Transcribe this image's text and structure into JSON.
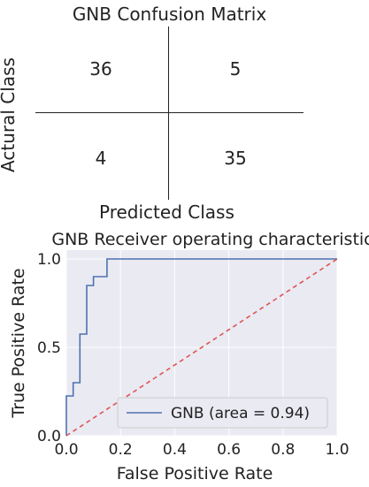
{
  "confusion_matrix": {
    "title": "GNB Confusion Matrix",
    "ylabel": "Actural Class",
    "xlabel": "Predicted Class",
    "cells": {
      "tl": "36",
      "tr": "5",
      "bl": "4",
      "br": "35"
    }
  },
  "chart_data": [
    {
      "type": "table",
      "title": "GNB Confusion Matrix",
      "xlabel": "Predicted Class",
      "ylabel": "Actural Class",
      "rows": [
        [
          36,
          5
        ],
        [
          4,
          35
        ]
      ]
    },
    {
      "type": "line",
      "title": "GNB Receiver operating characteristic",
      "xlabel": "False Positive Rate",
      "ylabel": "True Positive Rate",
      "xlim": [
        0.0,
        1.0
      ],
      "ylim": [
        0.0,
        1.05
      ],
      "xticks": [
        "0.0",
        "0.2",
        "0.4",
        "0.6",
        "0.8",
        "1.0"
      ],
      "yticks": [
        "0.0",
        "0.5",
        "1.0"
      ],
      "grid": true,
      "legend_position": "lower-right",
      "background": "#eaeaf2",
      "series": [
        {
          "name": "GNB (area = 0.94)",
          "color": "#4c72b0",
          "x": [
            0.0,
            0.0,
            0.025,
            0.025,
            0.05,
            0.05,
            0.075,
            0.075,
            0.1,
            0.1,
            0.15,
            0.15,
            1.0
          ],
          "y": [
            0.0,
            0.225,
            0.225,
            0.3,
            0.3,
            0.575,
            0.575,
            0.85,
            0.85,
            0.9,
            0.9,
            1.0,
            1.0
          ]
        },
        {
          "name": "",
          "style": "dashed",
          "color": "#dd5555",
          "x": [
            0.0,
            1.0
          ],
          "y": [
            0.0,
            1.0
          ]
        }
      ],
      "legend": [
        {
          "label": "GNB (area = 0.94)",
          "color": "#4c72b0"
        }
      ]
    }
  ]
}
